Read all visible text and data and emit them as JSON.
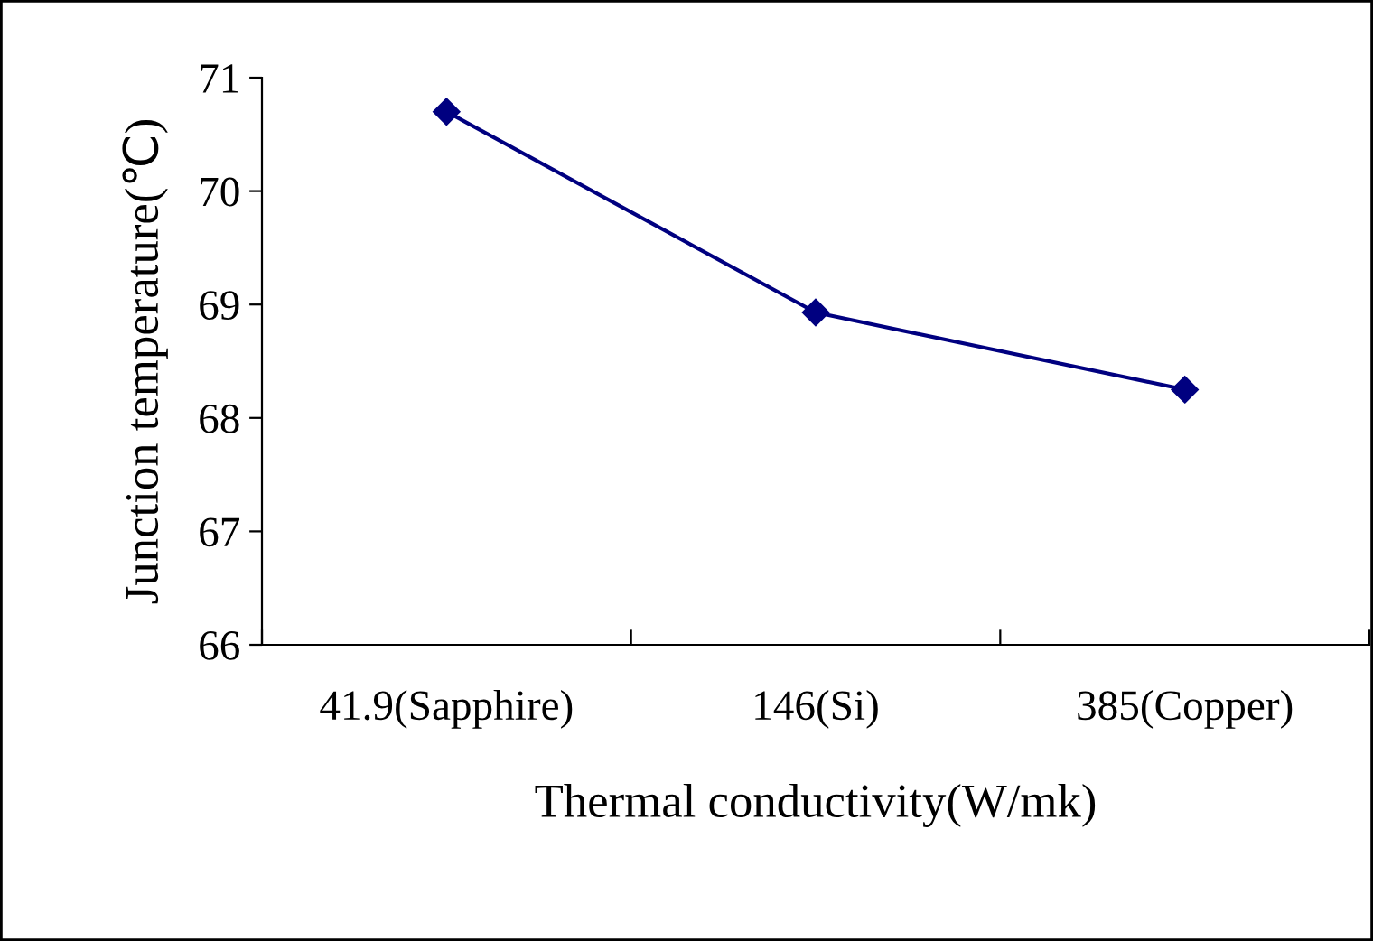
{
  "chart_data": {
    "type": "line",
    "xlabel": "Thermal conductivity(W/mk)",
    "ylabel": "Junction temperature(℃)",
    "categories": [
      "41.9(Sapphire)",
      "146(Si)",
      "385(Copper)"
    ],
    "series": [
      {
        "color": "#000080",
        "values": [
          70.7,
          68.93,
          68.25
        ]
      }
    ],
    "ylim": [
      66,
      71
    ],
    "yticks": [
      66,
      67,
      68,
      69,
      70,
      71
    ],
    "marker": "diamond",
    "line_style": "solid",
    "grid": false,
    "legend": false
  }
}
